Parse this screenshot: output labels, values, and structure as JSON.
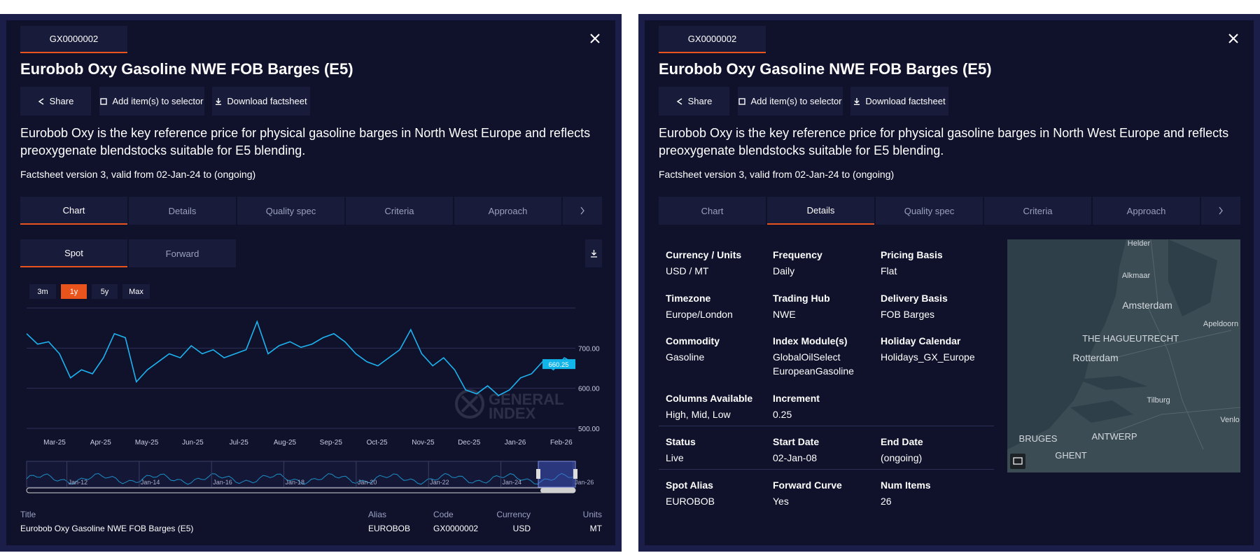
{
  "panels": [
    {
      "code": "GX0000002",
      "title": "Eurobob Oxy Gasoline NWE FOB Barges (E5)",
      "buttons": [
        "Share",
        "Add item(s) to selector",
        "Download factsheet"
      ],
      "description": "Eurobob Oxy is the key reference price for physical gasoline barges in North West Europe and reflects preoxygenate blendstocks suitable for E5 blending.",
      "version": "Factsheet version 3, valid from 02-Jan-24 to (ongoing)",
      "tabs": [
        "Chart",
        "Details",
        "Quality spec",
        "Criteria",
        "Approach"
      ],
      "active_tab": 0
    },
    {
      "code": "GX0000002",
      "title": "Eurobob Oxy Gasoline NWE FOB Barges (E5)",
      "buttons": [
        "Share",
        "Add item(s) to selector",
        "Download factsheet"
      ],
      "description": "Eurobob Oxy is the key reference price for physical gasoline barges in North West Europe and reflects preoxygenate blendstocks suitable for E5 blending.",
      "version": "Factsheet version 3, valid from 02-Jan-24 to (ongoing)",
      "tabs": [
        "Chart",
        "Details",
        "Quality spec",
        "Criteria",
        "Approach"
      ],
      "active_tab": 1
    }
  ],
  "chart_panel": {
    "subtabs": [
      "Spot",
      "Forward"
    ],
    "active_subtab": 0,
    "ranges": [
      "3m",
      "1y",
      "5y",
      "Max"
    ],
    "active_range": 1,
    "navigator_labels": [
      "Jan-12",
      "Jan-14",
      "Jan-16",
      "Jan-18",
      "Jan-20",
      "Jan-22",
      "Jan-24",
      "Jan-26"
    ],
    "footer": {
      "headers": [
        "Title",
        "Alias",
        "Code",
        "Currency",
        "Units"
      ],
      "values": [
        "Eurobob Oxy Gasoline NWE FOB Barges (E5)",
        "EUROBOB",
        "GX0000002",
        "USD",
        "MT"
      ]
    }
  },
  "chart_data": {
    "type": "line",
    "month_labels": [
      "Mar-25",
      "Apr-25",
      "May-25",
      "Jun-25",
      "Jul-25",
      "Aug-25",
      "Sep-25",
      "Oct-25",
      "Nov-25",
      "Dec-25",
      "Jan-26",
      "Feb-26"
    ],
    "values": [
      736,
      710,
      716,
      686,
      626,
      646,
      636,
      676,
      736,
      726,
      616,
      646,
      666,
      686,
      676,
      706,
      686,
      696,
      676,
      686,
      696,
      766,
      686,
      706,
      716,
      702,
      710,
      726,
      736,
      716,
      686,
      666,
      656,
      676,
      696,
      746,
      686,
      656,
      676,
      646,
      596,
      586,
      606,
      582,
      596,
      626,
      636,
      666,
      646,
      676,
      660.25
    ],
    "color": "#1db3f0",
    "ylim": [
      500,
      800
    ],
    "yticks": [
      {
        "value": 500,
        "label": "500.00"
      },
      {
        "value": 600,
        "label": "600.00"
      },
      {
        "value": 700,
        "label": "700.00"
      }
    ],
    "grid": true,
    "watermark": [
      "GENERAL",
      "INDEX"
    ]
  },
  "details": {
    "rows": [
      [
        {
          "label": "Currency / Units",
          "value": "USD / MT"
        },
        {
          "label": "Frequency",
          "value": "Daily"
        },
        {
          "label": "Pricing Basis",
          "value": "Flat"
        }
      ],
      [
        {
          "label": "Timezone",
          "value": "Europe/London"
        },
        {
          "label": "Trading Hub",
          "value": "NWE"
        },
        {
          "label": "Delivery Basis",
          "value": "FOB Barges"
        }
      ],
      [
        {
          "label": "Commodity",
          "value": "Gasoline"
        },
        {
          "label": "Index Module(s)",
          "value": "GlobalOilSelect EuropeanGasoline"
        },
        {
          "label": "Holiday Calendar",
          "value": "Holidays_GX_Europe"
        }
      ],
      [
        {
          "label": "Columns Available",
          "value": "High, Mid, Low"
        },
        {
          "label": "Increment",
          "value": "0.25"
        }
      ],
      [
        {
          "label": "Status",
          "value": "Live"
        },
        {
          "label": "Start Date",
          "value": "02-Jan-08"
        },
        {
          "label": "End Date",
          "value": "(ongoing)"
        }
      ],
      [
        {
          "label": "Spot Alias",
          "value": "EUROBOB"
        },
        {
          "label": "Forward Curve",
          "value": "Yes"
        },
        {
          "label": "Num Items",
          "value": "26"
        }
      ]
    ],
    "map_labels": [
      "Helder",
      "Alkmaar",
      "Amsterdam",
      "Apeldoorn",
      "THE HAGUE",
      "UTRECHT",
      "Rotterdam",
      "Tilburg",
      "Venlo",
      "BRUGES",
      "ANTWERP",
      "GHENT"
    ]
  }
}
